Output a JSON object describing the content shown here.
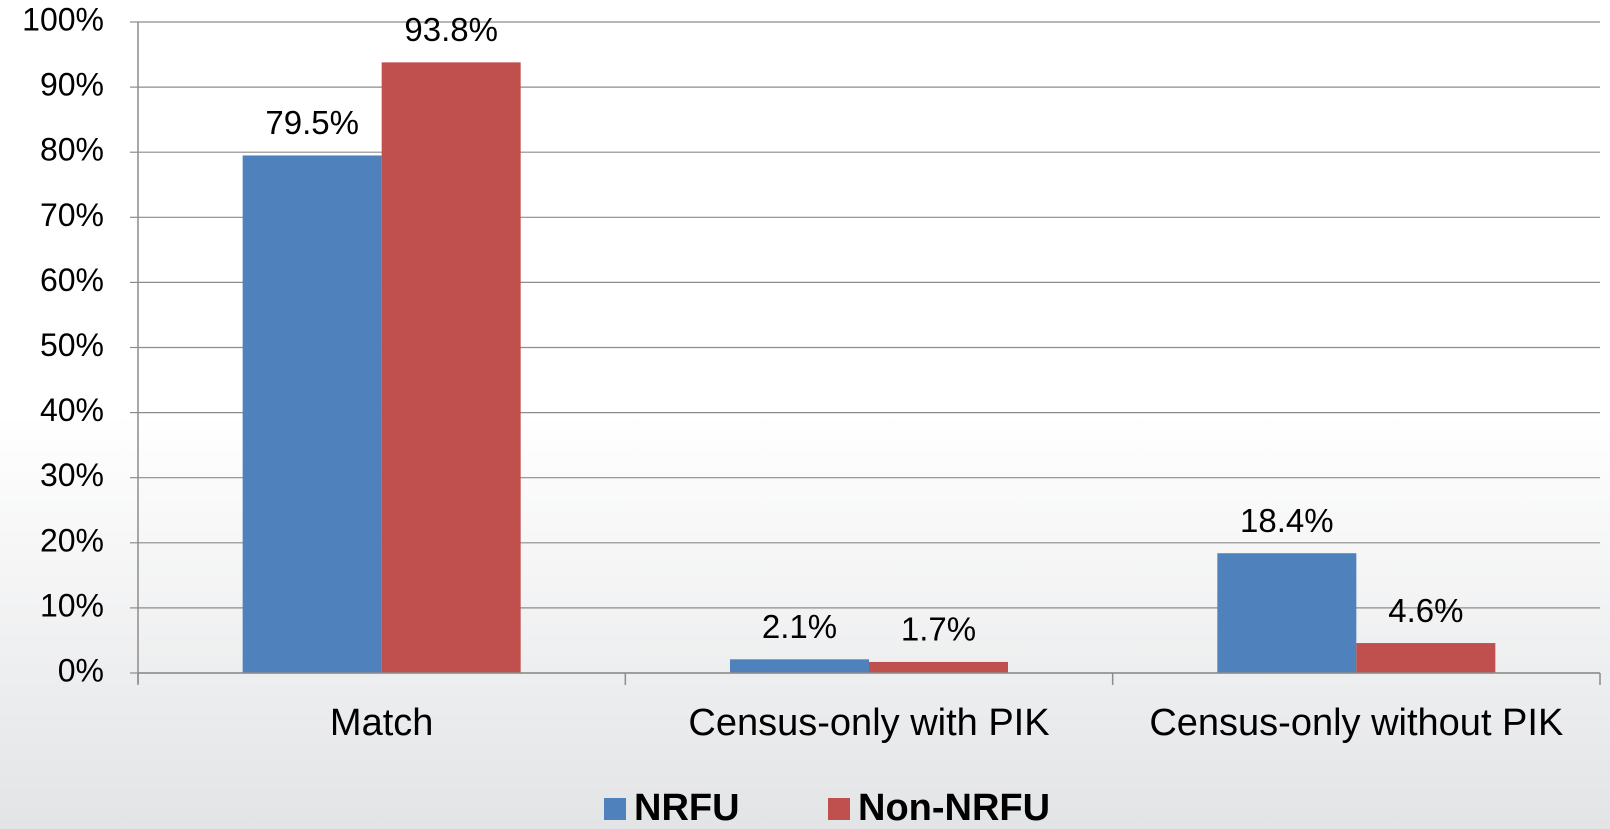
{
  "chart_data": {
    "type": "bar",
    "categories": [
      "Match",
      "Census-only with PIK",
      "Census-only without PIK"
    ],
    "series": [
      {
        "name": "NRFU",
        "color": "#4f81bd",
        "values": [
          79.5,
          2.1,
          18.4
        ],
        "value_labels": [
          "79.5%",
          "2.1%",
          "18.4%"
        ]
      },
      {
        "name": "Non-NRFU",
        "color": "#c0504d",
        "values": [
          93.8,
          1.7,
          4.6
        ],
        "value_labels": [
          "93.8%",
          "1.7%",
          "4.6%"
        ]
      }
    ],
    "ylim": [
      0,
      100
    ],
    "yticks": [
      {
        "value": 0,
        "label": "0%"
      },
      {
        "value": 10,
        "label": "10%"
      },
      {
        "value": 20,
        "label": "20%"
      },
      {
        "value": 30,
        "label": "30%"
      },
      {
        "value": 40,
        "label": "40%"
      },
      {
        "value": 50,
        "label": "50%"
      },
      {
        "value": 60,
        "label": "60%"
      },
      {
        "value": 70,
        "label": "70%"
      },
      {
        "value": 80,
        "label": "80%"
      },
      {
        "value": 90,
        "label": "90%"
      },
      {
        "value": 100,
        "label": "100%"
      }
    ],
    "grid": true,
    "legend": "bottom"
  }
}
